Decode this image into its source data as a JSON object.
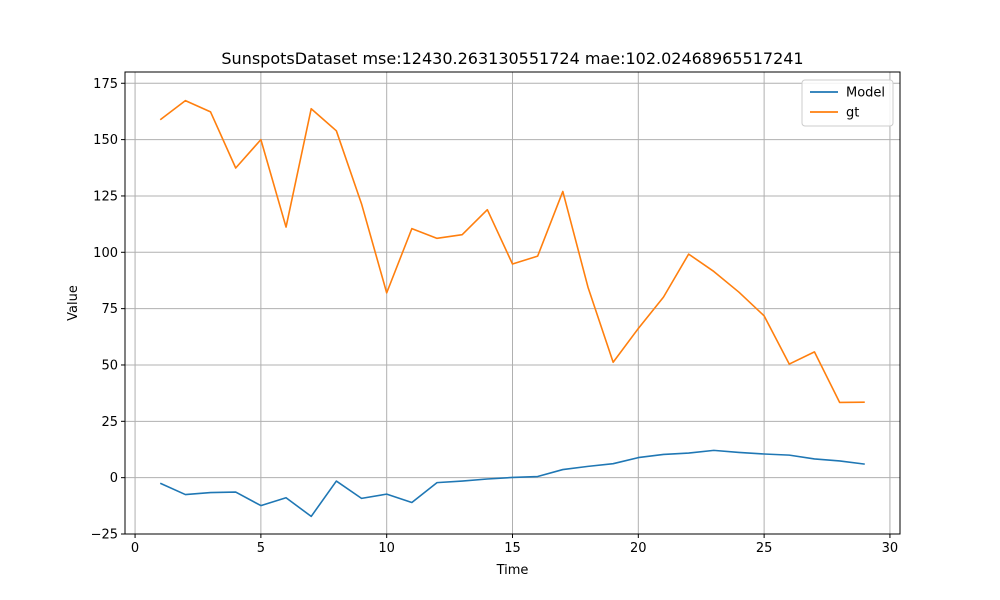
{
  "chart_data": {
    "type": "line",
    "title": "SunspotsDataset mse:12430.263130551724 mae:102.02468965517241",
    "xlabel": "Time",
    "ylabel": "Value",
    "xlim": [
      -0.4,
      30.4
    ],
    "ylim": [
      -25,
      180
    ],
    "xticks": [
      0,
      5,
      10,
      15,
      20,
      25,
      30
    ],
    "yticks": [
      -25,
      0,
      25,
      50,
      75,
      100,
      125,
      150,
      175
    ],
    "grid": true,
    "legend_position": "top-right",
    "x": [
      1,
      2,
      3,
      4,
      5,
      6,
      7,
      8,
      9,
      10,
      11,
      12,
      13,
      14,
      15,
      16,
      17,
      18,
      19,
      20,
      21,
      22,
      23,
      24,
      25,
      26,
      27,
      28,
      29
    ],
    "series": [
      {
        "name": "Model",
        "color": "#1f77b4",
        "values": [
          -2.5,
          -7.5,
          -6.6,
          -6.4,
          -12.4,
          -8.9,
          -17.2,
          -1.5,
          -9.2,
          -7.3,
          -11.0,
          -2.2,
          -1.5,
          -0.6,
          0.1,
          0.5,
          3.6,
          5.0,
          6.2,
          8.9,
          10.3,
          10.9,
          12.1,
          11.2,
          10.5,
          10.0,
          8.3,
          7.4,
          6.0
        ]
      },
      {
        "name": "gt",
        "color": "#ff7f0e",
        "values": [
          158.8,
          167.3,
          162.3,
          137.4,
          150.0,
          111.2,
          163.7,
          153.9,
          121.5,
          82.0,
          110.5,
          106.2,
          107.8,
          118.9,
          94.8,
          98.3,
          127.0,
          84.5,
          51.2,
          66.2,
          80.1,
          99.2,
          91.5,
          82.3,
          71.8,
          50.4,
          55.8,
          33.4,
          33.5
        ]
      }
    ]
  }
}
